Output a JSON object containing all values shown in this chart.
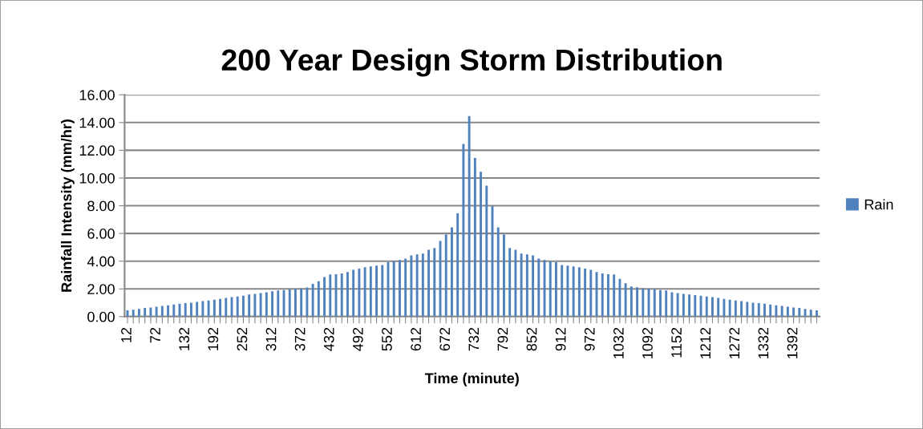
{
  "chart_data": {
    "type": "bar",
    "title": "200 Year Design Storm Distribution",
    "xlabel": "Time (minute)",
    "ylabel": "Rainfall Intensity (mm/hr)",
    "categories": [
      "12",
      null,
      null,
      null,
      null,
      "72",
      null,
      null,
      null,
      null,
      "132",
      null,
      null,
      null,
      null,
      "192",
      null,
      null,
      null,
      null,
      "252",
      null,
      null,
      null,
      null,
      "312",
      null,
      null,
      null,
      null,
      "372",
      null,
      null,
      null,
      null,
      "432",
      null,
      null,
      null,
      null,
      "492",
      null,
      null,
      null,
      null,
      "552",
      null,
      null,
      null,
      null,
      "612",
      null,
      null,
      null,
      null,
      "672",
      null,
      null,
      null,
      null,
      "732",
      null,
      null,
      null,
      null,
      "792",
      null,
      null,
      null,
      null,
      "852",
      null,
      null,
      null,
      null,
      "912",
      null,
      null,
      null,
      null,
      "972",
      null,
      null,
      null,
      null,
      "1032",
      null,
      null,
      null,
      null,
      "1092",
      null,
      null,
      null,
      null,
      "1152",
      null,
      null,
      null,
      null,
      "1212",
      null,
      null,
      null,
      null,
      "1272",
      null,
      null,
      null,
      null,
      "1332",
      null,
      null,
      null,
      null,
      "1392",
      null,
      null,
      null,
      null
    ],
    "series": [
      {
        "name": "Rain",
        "color": "#4f81bd",
        "values": [
          0.45,
          0.5,
          0.56,
          0.62,
          0.66,
          0.72,
          0.77,
          0.81,
          0.87,
          0.93,
          0.97,
          1.0,
          1.06,
          1.12,
          1.16,
          1.22,
          1.28,
          1.35,
          1.41,
          1.45,
          1.51,
          1.59,
          1.64,
          1.7,
          1.76,
          1.82,
          1.88,
          1.91,
          1.97,
          2.01,
          2.05,
          2.1,
          2.36,
          2.55,
          2.86,
          3.04,
          3.06,
          3.11,
          3.21,
          3.37,
          3.46,
          3.56,
          3.62,
          3.68,
          3.72,
          3.93,
          3.98,
          4.08,
          4.18,
          4.41,
          4.49,
          4.55,
          4.82,
          4.95,
          5.45,
          5.92,
          6.44,
          7.45,
          12.45,
          14.47,
          11.45,
          10.45,
          9.45,
          7.97,
          6.44,
          5.92,
          4.95,
          4.82,
          4.55,
          4.49,
          4.41,
          4.18,
          4.08,
          3.98,
          3.93,
          3.72,
          3.68,
          3.62,
          3.56,
          3.46,
          3.37,
          3.21,
          3.11,
          3.06,
          3.04,
          2.73,
          2.4,
          2.17,
          2.11,
          2.05,
          2.01,
          1.97,
          1.91,
          1.88,
          1.76,
          1.7,
          1.64,
          1.59,
          1.55,
          1.51,
          1.45,
          1.41,
          1.35,
          1.28,
          1.22,
          1.16,
          1.12,
          1.06,
          1.0,
          0.97,
          0.93,
          0.87,
          0.81,
          0.77,
          0.72,
          0.66,
          0.62,
          0.56,
          0.5,
          0.45
        ]
      }
    ],
    "ylim": [
      0,
      16
    ],
    "yticks": [
      {
        "value": 0,
        "label": "0.00"
      },
      {
        "value": 2,
        "label": "2.00"
      },
      {
        "value": 4,
        "label": "4.00"
      },
      {
        "value": 6,
        "label": "6.00"
      },
      {
        "value": 8,
        "label": "8.00"
      },
      {
        "value": 10,
        "label": "10.00"
      },
      {
        "value": 12,
        "label": "12.00"
      },
      {
        "value": 14,
        "label": "14.00"
      },
      {
        "value": 16,
        "label": "16.00"
      }
    ],
    "grid": "y",
    "legend": "right"
  }
}
